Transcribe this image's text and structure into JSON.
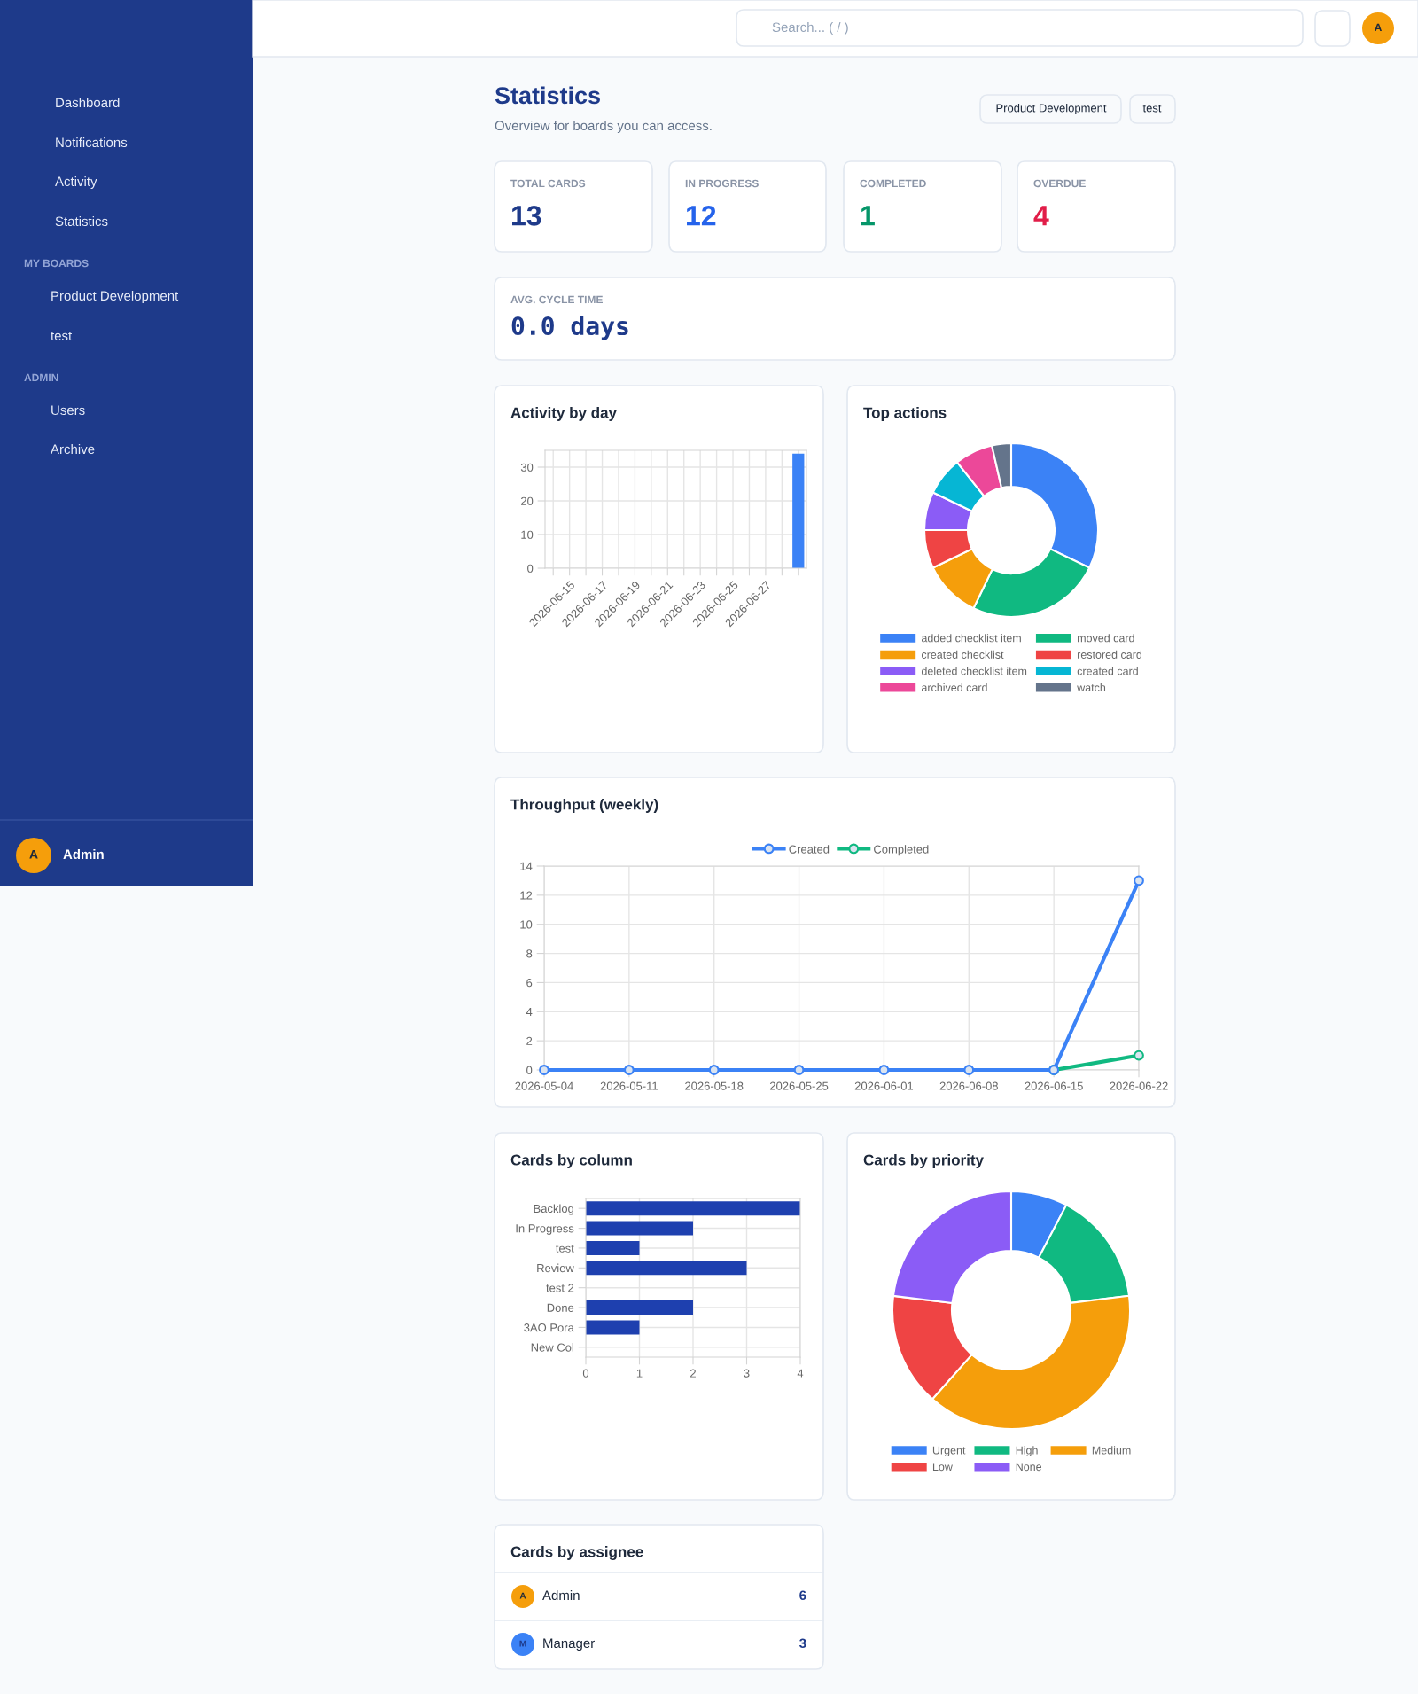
{
  "chart_data": [
    {
      "type": "other",
      "annotations": [
        "Dashboard",
        "Notifications",
        "Activity",
        "Statistics",
        "MY BOARDS",
        "Product Development",
        "test",
        "ADMIN",
        "Users",
        "Archive",
        "A",
        "Admin"
      ]
    },
    {
      "type": "other",
      "title": "Statistics",
      "subtitle": "Overview for boards you can access.",
      "annotations": [
        "Search... ( / )",
        "A",
        "Product Development",
        "test",
        "TOTAL CARDS",
        "13",
        "IN PROGRESS",
        "12",
        "COMPLETED",
        "1",
        "OVERDUE",
        "4",
        "AVG. CYCLE TIME",
        "0.0 days"
      ]
    },
    {
      "type": "bar",
      "title": "Activity by day",
      "categories": [
        null,
        "2026-06-15",
        null,
        "2026-06-17",
        null,
        "2026-06-19",
        null,
        "2026-06-21",
        null,
        "2026-06-23",
        null,
        "2026-06-25",
        null,
        "2026-06-27",
        null,
        null
      ],
      "values": [
        0,
        0,
        0,
        0,
        0,
        0,
        0,
        0,
        0,
        0,
        0,
        0,
        0,
        0,
        0,
        34
      ],
      "color": "#3b82f6",
      "ylim": [
        0,
        35
      ],
      "yticks": [
        0,
        10,
        20,
        30
      ],
      "grid": true
    },
    {
      "type": "donut",
      "title": "Top actions",
      "categories": [
        "added checklist item",
        "moved card",
        "created checklist",
        "restored card",
        "deleted checklist item",
        "created card",
        "archived card",
        "watch"
      ],
      "values": [
        32.15,
        25.0,
        10.71,
        7.14,
        7.14,
        7.14,
        7.14,
        3.58
      ],
      "colors": [
        "#3b82f6",
        "#10b981",
        "#f59e0b",
        "#ef4444",
        "#8b5cf6",
        "#06b6d4",
        "#ec4899",
        "#64748b"
      ],
      "legend": "bottom"
    },
    {
      "type": "line",
      "title": "Throughput (weekly)",
      "categories": [
        "2026-05-04",
        "2026-05-11",
        "2026-05-18",
        "2026-05-25",
        "2026-06-01",
        "2026-06-08",
        "2026-06-15",
        "2026-06-22"
      ],
      "series": [
        {
          "name": "Created",
          "color": "#3b82f6",
          "values": [
            0,
            0,
            0,
            0,
            0,
            0,
            0,
            13
          ]
        },
        {
          "name": "Completed",
          "color": "#10b981",
          "values": [
            null,
            null,
            null,
            null,
            null,
            null,
            0,
            1
          ]
        }
      ],
      "ylim": [
        0,
        14
      ],
      "yticks": [
        0,
        2,
        4,
        6,
        8,
        10,
        12,
        14
      ],
      "grid": true,
      "legend": "top",
      "marker": "circle"
    },
    {
      "type": "bar",
      "orientation": "horizontal",
      "title": "Cards by column",
      "categories": [
        "Backlog",
        "In Progress",
        "test",
        "Review",
        "test 2",
        "Done",
        "3AO Pora",
        "New Col"
      ],
      "values": [
        4,
        2,
        1,
        3,
        0,
        2,
        1,
        0
      ],
      "color": "#1e40af",
      "xlim": [
        0,
        4
      ],
      "xticks": [
        0,
        1,
        2,
        3,
        4
      ],
      "grid": true
    },
    {
      "type": "donut",
      "title": "Cards by priority",
      "categories": [
        "Urgent",
        "High",
        "Medium",
        "Low",
        "None"
      ],
      "values": [
        7.69,
        15.38,
        38.47,
        15.38,
        23.08
      ],
      "colors": [
        "#3b82f6",
        "#10b981",
        "#f59e0b",
        "#ef4444",
        "#8b5cf6"
      ],
      "legend": "bottom"
    },
    {
      "type": "other",
      "title": "Cards by assignee",
      "annotations": [
        "A",
        "Admin",
        "6",
        "M",
        "Manager",
        "3"
      ]
    }
  ]
}
